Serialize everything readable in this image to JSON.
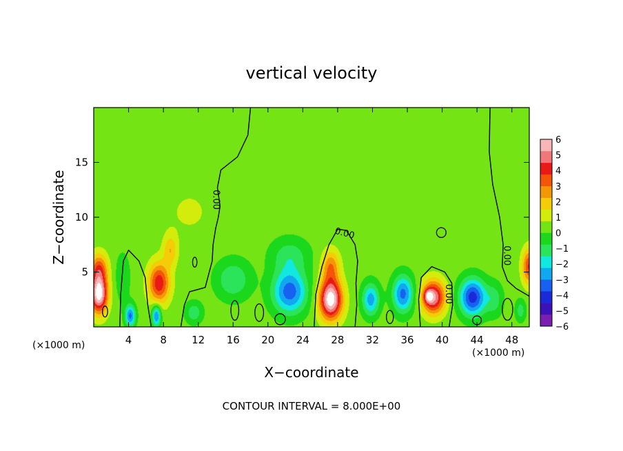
{
  "chart_data": {
    "type": "heatmap",
    "title": "vertical velocity",
    "xlabel": "X−coordinate",
    "ylabel": "Z−coordinate",
    "x_unit_left": "(×1000 m)",
    "x_unit_right": "(×1000 m)",
    "footer": "CONTOUR INTERVAL = 8.000E+00",
    "xlim": [
      0,
      50
    ],
    "ylim": [
      0,
      20
    ],
    "x_ticks": [
      {
        "value": 4,
        "label": "4"
      },
      {
        "value": 8,
        "label": "8"
      },
      {
        "value": 12,
        "label": "12"
      },
      {
        "value": 16,
        "label": "16"
      },
      {
        "value": 20,
        "label": "20"
      },
      {
        "value": 24,
        "label": "24"
      },
      {
        "value": 28,
        "label": "28"
      },
      {
        "value": 32,
        "label": "32"
      },
      {
        "value": 36,
        "label": "36"
      },
      {
        "value": 40,
        "label": "40"
      },
      {
        "value": 44,
        "label": "44"
      },
      {
        "value": 48,
        "label": "48"
      }
    ],
    "y_ticks": [
      {
        "value": 5,
        "label": "5"
      },
      {
        "value": 10,
        "label": "10"
      },
      {
        "value": 15,
        "label": "15"
      }
    ],
    "colorbar": {
      "range": [
        -6,
        6
      ],
      "labels": [
        {
          "value": 6,
          "label": "6"
        },
        {
          "value": 5,
          "label": "5"
        },
        {
          "value": 4,
          "label": "4"
        },
        {
          "value": 3,
          "label": "3"
        },
        {
          "value": 2,
          "label": "2"
        },
        {
          "value": 1,
          "label": "1"
        },
        {
          "value": 0,
          "label": "0"
        },
        {
          "value": -1,
          "label": "−1"
        },
        {
          "value": -2,
          "label": "−2"
        },
        {
          "value": -3,
          "label": "−3"
        },
        {
          "value": -4,
          "label": "−4"
        },
        {
          "value": -5,
          "label": "−5"
        },
        {
          "value": -6,
          "label": "−6"
        }
      ],
      "colors": [
        "#7a1fb0",
        "#3a12b8",
        "#1a2ad8",
        "#1860f0",
        "#12a8f0",
        "#10e8e0",
        "#2ce45a",
        "#1cd81c",
        "#74e414",
        "#d4ec0c",
        "#f4cc08",
        "#f49606",
        "#f25606",
        "#e81a16",
        "#f07878",
        "#f8b6b6"
      ]
    },
    "contour_labels": [
      {
        "x": 14.0,
        "y": 11.6,
        "text": "0.00"
      },
      {
        "x": 28.8,
        "y": 8.5,
        "text": "0.00"
      },
      {
        "x": 40.7,
        "y": 3.0,
        "text": "0.00"
      },
      {
        "x": 47.4,
        "y": 6.5,
        "text": "0.00"
      }
    ],
    "features": [
      {
        "x": 0.6,
        "y": 3.0,
        "value": 6.2,
        "sx": 1.0,
        "sy": 1.7
      },
      {
        "x": 0.6,
        "y": 5.3,
        "value": 3.0,
        "sx": 1.0,
        "sy": 1.4
      },
      {
        "x": 4.2,
        "y": 1.0,
        "value": -3.5,
        "sx": 0.6,
        "sy": 1.0
      },
      {
        "x": 3.3,
        "y": 4.5,
        "value": -0.8,
        "sx": 1.0,
        "sy": 2.5
      },
      {
        "x": 7.5,
        "y": 4.0,
        "value": 4.0,
        "sx": 1.2,
        "sy": 1.8
      },
      {
        "x": 8.8,
        "y": 7.0,
        "value": 1.8,
        "sx": 0.8,
        "sy": 1.4
      },
      {
        "x": 7.2,
        "y": 1.0,
        "value": -3.5,
        "sx": 0.5,
        "sy": 1.0
      },
      {
        "x": 11.5,
        "y": 1.3,
        "value": -1.6,
        "sx": 1.0,
        "sy": 1.0
      },
      {
        "x": 16.0,
        "y": 4.3,
        "value": -1.8,
        "sx": 2.0,
        "sy": 1.8
      },
      {
        "x": 22.5,
        "y": 3.2,
        "value": -3.8,
        "sx": 2.0,
        "sy": 2.0
      },
      {
        "x": 22.5,
        "y": 6.5,
        "value": -1.5,
        "sx": 2.2,
        "sy": 1.6
      },
      {
        "x": 27.2,
        "y": 2.5,
        "value": 6.3,
        "sx": 1.3,
        "sy": 1.8
      },
      {
        "x": 27.2,
        "y": 5.5,
        "value": 2.5,
        "sx": 1.0,
        "sy": 1.5
      },
      {
        "x": 31.8,
        "y": 2.5,
        "value": -3.0,
        "sx": 1.0,
        "sy": 1.5
      },
      {
        "x": 35.5,
        "y": 3.0,
        "value": -3.6,
        "sx": 1.2,
        "sy": 1.7
      },
      {
        "x": 39.0,
        "y": 2.7,
        "value": 5.0,
        "sx": 1.3,
        "sy": 1.5
      },
      {
        "x": 38.4,
        "y": 2.8,
        "value": 2.5,
        "sx": 0.5,
        "sy": 0.6
      },
      {
        "x": 43.5,
        "y": 2.7,
        "value": -4.5,
        "sx": 1.5,
        "sy": 1.7
      },
      {
        "x": 46.0,
        "y": 2.5,
        "value": -1.4,
        "sx": 1.0,
        "sy": 1.5
      },
      {
        "x": 50.0,
        "y": 5.5,
        "value": 3.5,
        "sx": 0.8,
        "sy": 1.6
      },
      {
        "x": 49.0,
        "y": 1.5,
        "value": -1.5,
        "sx": 0.6,
        "sy": 1.0
      },
      {
        "x": 11.0,
        "y": 10.5,
        "value": 0.5,
        "sx": 3.0,
        "sy": 2.5
      }
    ],
    "contours": [
      [
        [
          18.0,
          20
        ],
        [
          17.7,
          17.5
        ],
        [
          16.5,
          15.5
        ],
        [
          14.6,
          14.3
        ],
        [
          14.2,
          12.7
        ],
        [
          14.5,
          11.0
        ],
        [
          14.3,
          10.0
        ],
        [
          14.0,
          9.0
        ],
        [
          13.7,
          7.5
        ],
        [
          13.6,
          6.0
        ],
        [
          13.2,
          4.8
        ],
        [
          12.8,
          3.6
        ],
        [
          11.0,
          3.2
        ],
        [
          10.4,
          2.0
        ],
        [
          10.0,
          0
        ]
      ],
      [
        [
          3.0,
          0
        ],
        [
          3.1,
          3.0
        ],
        [
          3.4,
          6.0
        ],
        [
          4.0,
          7.0
        ],
        [
          5.2,
          6.0
        ],
        [
          5.9,
          4.5
        ],
        [
          6.2,
          2.0
        ],
        [
          6.6,
          0
        ]
      ],
      [
        [
          25.3,
          0
        ],
        [
          25.5,
          3.0
        ],
        [
          26.2,
          5.5
        ],
        [
          27.0,
          7.5
        ],
        [
          28.0,
          8.9
        ],
        [
          29.0,
          8.8
        ],
        [
          30.0,
          7.5
        ],
        [
          30.3,
          6.0
        ],
        [
          30.1,
          4.0
        ],
        [
          30.2,
          2.0
        ],
        [
          30.0,
          0
        ]
      ],
      [
        [
          37.5,
          0
        ],
        [
          37.3,
          2.5
        ],
        [
          37.6,
          4.5
        ],
        [
          38.8,
          5.5
        ],
        [
          40.3,
          5.0
        ],
        [
          41.1,
          4.0
        ],
        [
          41.2,
          2.0
        ],
        [
          40.8,
          0
        ]
      ],
      [
        [
          45.5,
          20
        ],
        [
          45.4,
          16
        ],
        [
          45.8,
          13
        ],
        [
          46.6,
          10
        ],
        [
          47.0,
          7.5
        ],
        [
          46.9,
          5.5
        ],
        [
          47.5,
          4.2
        ],
        [
          48.5,
          3.5
        ],
        [
          50,
          2.8
        ]
      ]
    ],
    "closed_contours": [
      {
        "x": 39.9,
        "y": 8.6,
        "rx": 0.55,
        "ry": 0.45
      },
      {
        "x": 11.6,
        "y": 5.9,
        "rx": 0.25,
        "ry": 0.45
      },
      {
        "x": 1.3,
        "y": 1.4,
        "rx": 0.3,
        "ry": 0.5
      },
      {
        "x": 16.2,
        "y": 1.5,
        "rx": 0.45,
        "ry": 0.9
      },
      {
        "x": 19.0,
        "y": 1.3,
        "rx": 0.5,
        "ry": 0.8
      },
      {
        "x": 21.4,
        "y": 0.7,
        "rx": 0.6,
        "ry": 0.5
      },
      {
        "x": 34.0,
        "y": 0.9,
        "rx": 0.4,
        "ry": 0.6
      },
      {
        "x": 44.0,
        "y": 0.6,
        "rx": 0.5,
        "ry": 0.4
      },
      {
        "x": 47.5,
        "y": 1.6,
        "rx": 0.6,
        "ry": 1.0
      }
    ]
  }
}
